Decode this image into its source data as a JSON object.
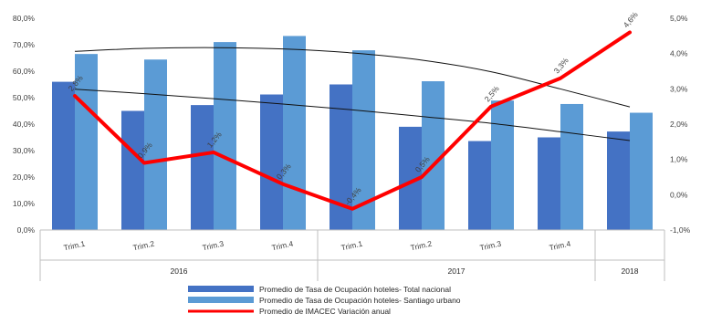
{
  "chart_data": {
    "type": "bar",
    "categories": [
      "Trim.1",
      "Trim.2",
      "Trim.3",
      "Trim.4",
      "Trim.1",
      "Trim.2",
      "Trim.3",
      "Trim.4",
      ""
    ],
    "groups": [
      {
        "label": "2016",
        "start": 0,
        "end": 3
      },
      {
        "label": "2017",
        "start": 4,
        "end": 7
      },
      {
        "label": "2018",
        "start": 8,
        "end": 8
      }
    ],
    "left_axis": {
      "min": 0,
      "max": 80,
      "step": 10,
      "ticks": [
        "0,0%",
        "10,0%",
        "20,0%",
        "30,0%",
        "40,0%",
        "50,0%",
        "60,0%",
        "70,0%",
        "80,0%"
      ]
    },
    "right_axis": {
      "min": -1,
      "max": 5,
      "step": 1,
      "ticks": [
        "-1,0%",
        "0,0%",
        "1,0%",
        "2,0%",
        "3,0%",
        "4,0%",
        "5,0%"
      ]
    },
    "series": [
      {
        "name": "Promedio de Tasa de Ocupación hoteles- Total nacional",
        "type": "bar",
        "axis": "left",
        "color": "#4472c4",
        "values": [
          56.0,
          45.0,
          47.2,
          51.2,
          55.0,
          39.0,
          33.6,
          35.0,
          37.2
        ]
      },
      {
        "name": "Promedio de Tasa de Ocupación hoteles- Santiago urbano",
        "type": "bar",
        "axis": "left",
        "color": "#5b9bd5",
        "values": [
          66.5,
          64.4,
          71.0,
          73.3,
          67.9,
          56.2,
          48.9,
          47.6,
          44.3
        ]
      },
      {
        "name": "Promedio de IMACEC Variación anual",
        "type": "line",
        "axis": "right",
        "color": "#ff0000",
        "values": [
          2.8,
          0.9,
          1.2,
          0.3,
          -0.4,
          0.5,
          2.5,
          3.3,
          4.6
        ],
        "labels": [
          "2,8%",
          "0,9%",
          "1,2%",
          "0,3%",
          "-0,4%",
          "0,5%",
          "2,5%",
          "3,3%",
          "4,6%"
        ]
      }
    ],
    "trendlines": [
      {
        "series": "Promedio de Tasa de Ocupación hoteles- Total nacional",
        "axis": "left",
        "values": [
          53.2,
          51.5,
          49.6,
          47.6,
          45.4,
          42.9,
          40.3,
          37.1,
          33.8
        ]
      },
      {
        "series": "Promedio de Tasa de Ocupación hoteles- Santiago urbano",
        "axis": "left",
        "values": [
          67.5,
          68.6,
          68.9,
          68.4,
          66.9,
          64.2,
          59.8,
          53.3,
          46.5
        ]
      }
    ],
    "grid": false,
    "legend_position": "bottom",
    "title": "",
    "xlabel": "",
    "ylabel": ""
  }
}
